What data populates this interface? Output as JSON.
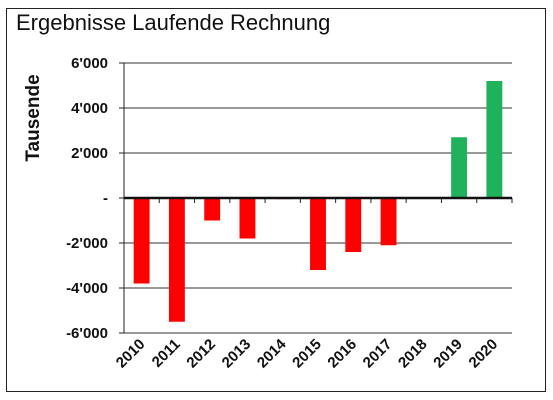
{
  "chart_data": {
    "type": "bar",
    "title": "Ergebnisse Laufende Rechnung",
    "xlabel": "",
    "ylabel": "Tausende",
    "categories": [
      "2010",
      "2011",
      "2012",
      "2013",
      "2014",
      "2015",
      "2016",
      "2017",
      "2018",
      "2019",
      "2020"
    ],
    "values": [
      -3800,
      -5500,
      -1000,
      -1800,
      -50,
      -3200,
      -2400,
      -2100,
      0,
      2700,
      5200
    ],
    "ylim": [
      -6000,
      6000
    ],
    "yticks": [
      -6000,
      -4000,
      -2000,
      0,
      2000,
      4000,
      6000
    ],
    "ytick_labels": [
      "-6'000",
      "-4'000",
      "-2'000",
      "-",
      "2'000",
      "4'000",
      "6'000"
    ],
    "grid": true,
    "colors": {
      "negative": "#ff0000",
      "positive": "#1fb25a",
      "grid": "#333333"
    }
  }
}
